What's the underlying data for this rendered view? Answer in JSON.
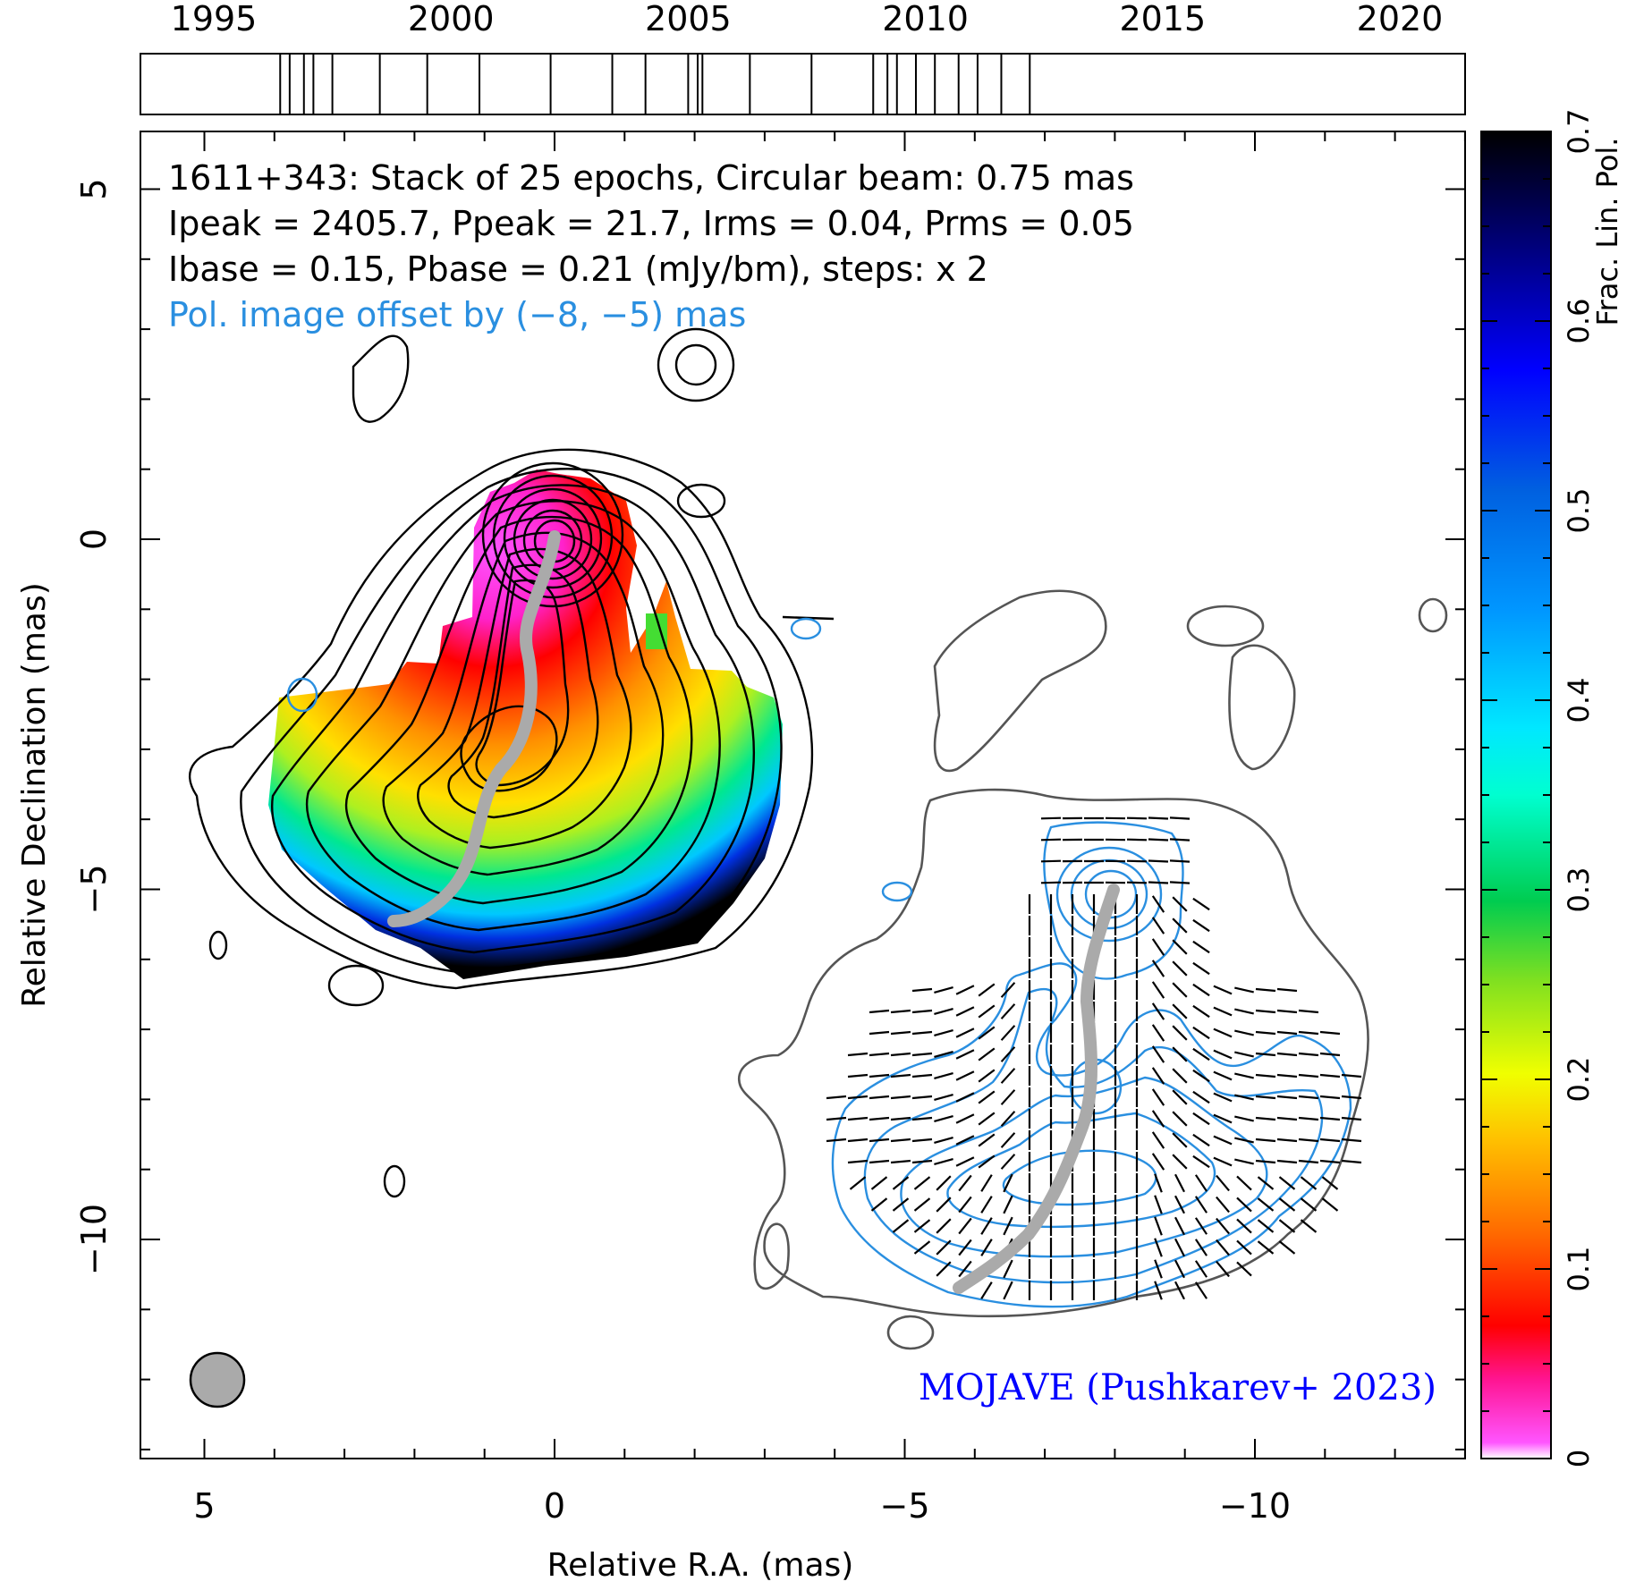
{
  "chart_data": {
    "type": "heatmap",
    "source_name": "1611+343",
    "header_lines": [
      "1611+343: Stack of 25 epochs, Circular beam: 0.75 mas",
      "Ipeak = 2405.7, Ppeak = 21.7, Irms = 0.04, Prms = 0.05",
      "Ibase = 0.15, Pbase = 0.21 (mJy/bm), steps: x 2"
    ],
    "offset_note": "Pol. image offset by (−8, −5) mas",
    "credit": "MOJAVE (Pushkarev+ 2023)",
    "xlabel": "Relative R.A. (mas)",
    "ylabel": "Relative Declination (mas)",
    "xlim": [
      6,
      -13
    ],
    "ylim": [
      -13,
      5.8
    ],
    "xticks": [
      5,
      0,
      -5,
      -10
    ],
    "xtick_labels": [
      "5",
      "0",
      "−5",
      "−10"
    ],
    "yticks": [
      5,
      0,
      -5,
      -10
    ],
    "ytick_labels": [
      "5",
      "0",
      "−5",
      "−10"
    ],
    "timeline": {
      "range": [
        1993,
        2020
      ],
      "tick_years": [
        1995,
        2000,
        2005,
        2010,
        2015,
        2020
      ],
      "tick_labels": [
        "1995",
        "2000",
        "2005",
        "2010",
        "2015",
        "2020"
      ],
      "epochs": [
        1996.4,
        1996.6,
        1996.9,
        1997.1,
        1997.5,
        1998.5,
        1999.5,
        2000.6,
        2002.1,
        2003.4,
        2004.1,
        2005.0,
        2005.2,
        2005.3,
        2006.3,
        2007.6,
        2008.9,
        2009.2,
        2009.4,
        2009.8,
        2010.2,
        2010.7,
        2011.1,
        2011.6,
        2012.2
      ]
    },
    "colorbar": {
      "label": "Frac. Lin. Pol.",
      "range": [
        0,
        0.7
      ],
      "ticks": [
        0,
        0.1,
        0.2,
        0.3,
        0.4,
        0.5,
        0.6,
        0.7
      ],
      "tick_labels": [
        "0",
        "0.1",
        "0.2",
        "0.3",
        "0.4",
        "0.5",
        "0.6",
        "0.7"
      ],
      "colormap": "magenta-red-orange-yellow-green-cyan-blue-black"
    },
    "total_intensity_core": {
      "x": 0,
      "y": 0,
      "peak_mJy": 2405.7
    },
    "polarization_core": {
      "x": -8,
      "y": -5
    },
    "beam": {
      "major_mas": 0.75,
      "x": 4.9,
      "y": -12
    }
  },
  "colors": {
    "stokes_i_contours": "#000000",
    "pol_contours": "#2a8fe0",
    "pol_outer_contour": "#555555",
    "ridge_line": "#aaaaaa",
    "evpa_ticks": "#000000",
    "offset_note": "#2a8fe0",
    "credit": "#0000ff",
    "beam_fill": "#aaaaaa"
  }
}
